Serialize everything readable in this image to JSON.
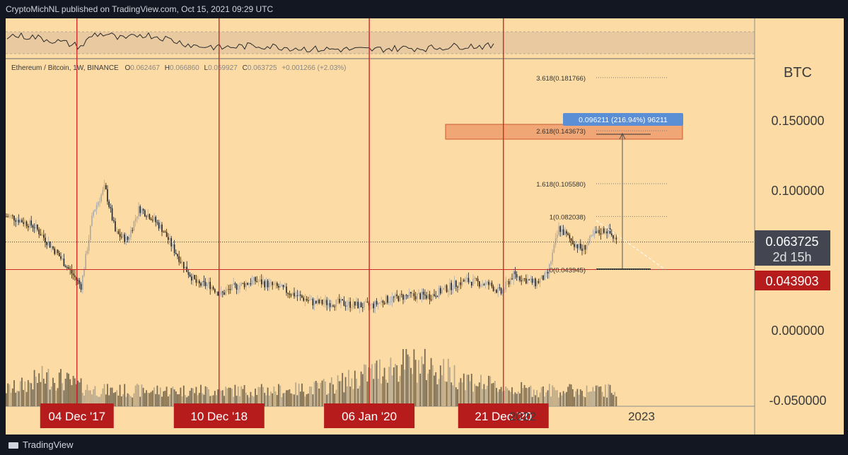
{
  "header": {
    "published": "CryptoMichNL published on TradingView.com, Oct 15, 2021 09:29 UTC"
  },
  "footer": {
    "brand": "TradingView"
  },
  "colors": {
    "background": "#fcdba4",
    "candle_up": "#a9a9a9",
    "candle_down": "#222222",
    "marker": "#cc2a2a",
    "label_red": "#b71c1c",
    "price_label": "#434651",
    "target_box": "#ec9466",
    "measure_label": "#5b8fd5"
  },
  "instrument": {
    "legend": "Ethereum / Bitcoin, 1W, BINANCE",
    "ohlc": [
      {
        "k": "O",
        "v": "0.062467"
      },
      {
        "k": "H",
        "v": "0.066860"
      },
      {
        "k": "L",
        "v": "0.059927"
      },
      {
        "k": "C",
        "v": "0.063725"
      }
    ],
    "change": "+0.001266 (+2.03%)",
    "currency": "BTC"
  },
  "price_axis": {
    "ticks": [
      "0.150000",
      "0.100000",
      "0.000000",
      "-0.050000"
    ]
  },
  "time_axis": {
    "ticks": [
      "2022",
      "2023"
    ]
  },
  "markers": [
    {
      "label": "04 Dec '17",
      "date": "2017-12-04"
    },
    {
      "label": "10 Dec '18",
      "date": "2018-12-10"
    },
    {
      "label": "06 Jan '20",
      "date": "2020-01-06"
    },
    {
      "label": "21 Dec '20",
      "date": "2020-12-21"
    }
  ],
  "current_price": {
    "value": "0.063725",
    "countdown": "2d 15h"
  },
  "support": {
    "value": "0.043903"
  },
  "fib_levels": [
    {
      "label": "3.618(0.181766)",
      "ratio": 3.618,
      "price": 0.181766
    },
    {
      "label": "2.618(0.143673)",
      "ratio": 2.618,
      "price": 0.143673
    },
    {
      "label": "1.618(0.105580)",
      "ratio": 1.618,
      "price": 0.10558
    },
    {
      "label": "1(0.082038)",
      "ratio": 1,
      "price": 0.082038
    },
    {
      "label": "0(0.043945)",
      "ratio": 0,
      "price": 0.043945
    }
  ],
  "measure": {
    "label": "0.096211 (216.94%) 96211"
  },
  "chart_data": {
    "type": "candlestick",
    "symbol": "ETH/BTC",
    "interval": "1W",
    "x_range": [
      "2017-06",
      "2023-06"
    ],
    "ylim": [
      -0.05,
      0.19
    ],
    "series": [
      {
        "name": "ETH/BTC",
        "points": [
          [
            "2017-06",
            0.082
          ],
          [
            "2017-08",
            0.075
          ],
          [
            "2017-10",
            0.055
          ],
          [
            "2017-12",
            0.032
          ],
          [
            "2018-01",
            0.085
          ],
          [
            "2018-02",
            0.103
          ],
          [
            "2018-03",
            0.07
          ],
          [
            "2018-04",
            0.065
          ],
          [
            "2018-05",
            0.088
          ],
          [
            "2018-06",
            0.082
          ],
          [
            "2018-07",
            0.073
          ],
          [
            "2018-08",
            0.058
          ],
          [
            "2018-09",
            0.044
          ],
          [
            "2018-10",
            0.033
          ],
          [
            "2018-11",
            0.033
          ],
          [
            "2018-12",
            0.026
          ],
          [
            "2019-01",
            0.031
          ],
          [
            "2019-03",
            0.036
          ],
          [
            "2019-05",
            0.031
          ],
          [
            "2019-06",
            0.027
          ],
          [
            "2019-08",
            0.02
          ],
          [
            "2019-10",
            0.02
          ],
          [
            "2019-12",
            0.018
          ],
          [
            "2020-01",
            0.018
          ],
          [
            "2020-02",
            0.022
          ],
          [
            "2020-04",
            0.025
          ],
          [
            "2020-06",
            0.025
          ],
          [
            "2020-08",
            0.033
          ],
          [
            "2020-09",
            0.036
          ],
          [
            "2020-11",
            0.033
          ],
          [
            "2020-12",
            0.027
          ],
          [
            "2021-01",
            0.04
          ],
          [
            "2021-03",
            0.034
          ],
          [
            "2021-04",
            0.04
          ],
          [
            "2021-05",
            0.074
          ],
          [
            "2021-06",
            0.065
          ],
          [
            "2021-07",
            0.058
          ],
          [
            "2021-08",
            0.069
          ],
          [
            "2021-09",
            0.073
          ],
          [
            "2021-10",
            0.0637
          ]
        ]
      }
    ],
    "volume": "shown as bars beneath price, peak around Dec 2020",
    "indicator_pane": "oscillator line in upper pane",
    "grid": false
  }
}
